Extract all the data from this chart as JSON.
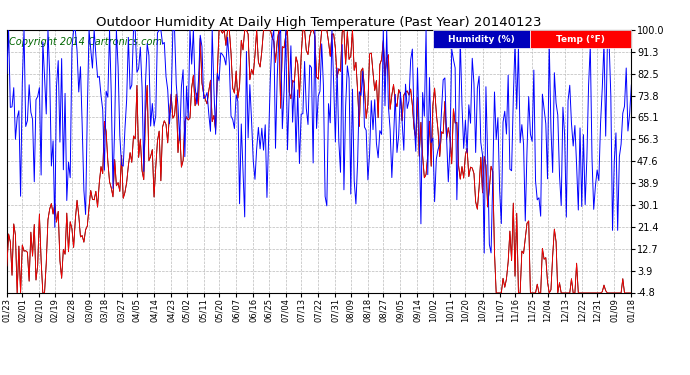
{
  "title": "Outdoor Humidity At Daily High Temperature (Past Year) 20140123",
  "copyright": "Copyright 2014 Cartronics.com",
  "legend_humidity": "Humidity (%)",
  "legend_temp": "Temp (°F)",
  "ylim": [
    -4.8,
    100.0
  ],
  "yticks": [
    -4.8,
    3.9,
    12.7,
    21.4,
    30.1,
    38.9,
    47.6,
    56.3,
    65.1,
    73.8,
    82.5,
    91.3,
    100.0
  ],
  "xtick_labels": [
    "01/23",
    "02/01",
    "02/10",
    "02/19",
    "02/28",
    "03/09",
    "03/18",
    "03/27",
    "04/05",
    "04/14",
    "04/23",
    "05/02",
    "05/11",
    "05/20",
    "06/07",
    "06/16",
    "06/25",
    "07/04",
    "07/13",
    "07/22",
    "07/31",
    "08/09",
    "08/18",
    "08/27",
    "09/05",
    "09/14",
    "10/02",
    "10/11",
    "10/20",
    "10/29",
    "11/07",
    "11/16",
    "11/25",
    "12/04",
    "12/13",
    "12/22",
    "12/31",
    "01/09",
    "01/18"
  ],
  "humidity_color": "#0000ff",
  "temp_color": "#ff0000",
  "black_color": "#000000",
  "background_color": "#ffffff",
  "grid_color": "#bbbbbb",
  "title_fontsize": 9.5,
  "copyright_fontsize": 7,
  "legend_bg_humidity": "#0000bb",
  "legend_bg_temp": "#ff0000",
  "legend_text_color": "#ffffff"
}
